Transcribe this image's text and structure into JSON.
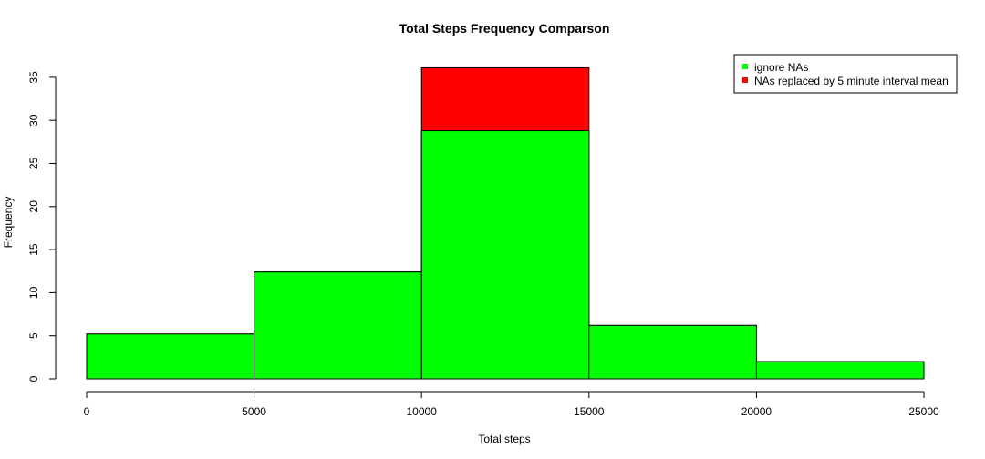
{
  "chart_data": {
    "type": "bar",
    "title": "Total Steps Frequency Comparson",
    "xlabel": "Total steps",
    "ylabel": "Frequency",
    "xlim": [
      0,
      25000
    ],
    "ylim": [
      0,
      36
    ],
    "x_ticks": [
      "0",
      "5000",
      "10000",
      "15000",
      "20000",
      "25000"
    ],
    "y_ticks": [
      "0",
      "5",
      "10",
      "15",
      "20",
      "25",
      "30",
      "35"
    ],
    "bins": [
      {
        "from": 0,
        "to": 5000
      },
      {
        "from": 5000,
        "to": 10000
      },
      {
        "from": 10000,
        "to": 15000
      },
      {
        "from": 15000,
        "to": 20000
      },
      {
        "from": 20000,
        "to": 25000
      }
    ],
    "series": [
      {
        "name": "NAs replaced by 5 minute interval mean",
        "color": "#ff0000",
        "values": [
          5.2,
          12.4,
          36.1,
          6.2,
          2.0
        ]
      },
      {
        "name": "ignore NAs",
        "color": "#00ff00",
        "values": [
          5.2,
          12.4,
          28.8,
          6.2,
          2.0
        ]
      }
    ],
    "legend": {
      "position": "top-right",
      "entries": [
        {
          "label": "ignore NAs",
          "color": "#00ff00"
        },
        {
          "label": "NAs replaced by 5 minute interval mean",
          "color": "#ff0000"
        }
      ]
    },
    "grid": false
  }
}
